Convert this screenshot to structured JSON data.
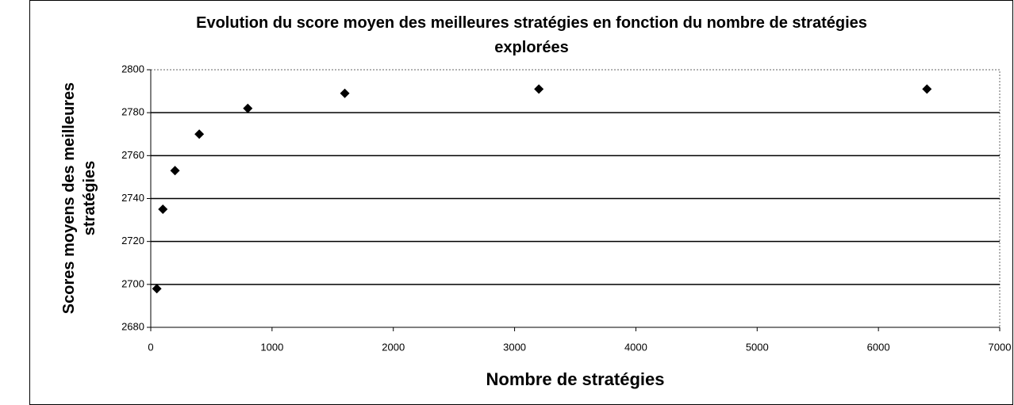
{
  "chart_data": {
    "type": "scatter",
    "title": "Evolution du score moyen des meilleures stratégies en fonction du nombre de stratégies explorées",
    "x_label": "Nombre de stratégies",
    "y_label": "Scores moyens des meilleures stratégies",
    "x": [
      50,
      100,
      200,
      400,
      800,
      1600,
      3200,
      6400
    ],
    "values": [
      2698,
      2735,
      2753,
      2770,
      2782,
      2789,
      2791,
      2791
    ],
    "color": "#000000",
    "xlim": [
      0,
      7000
    ],
    "xticks": [
      0,
      1000,
      2000,
      3000,
      4000,
      5000,
      6000,
      7000
    ],
    "ylim": [
      2680,
      2800
    ],
    "yticks": [
      2680,
      2700,
      2720,
      2740,
      2760,
      2780,
      2800
    ],
    "grid": true
  }
}
